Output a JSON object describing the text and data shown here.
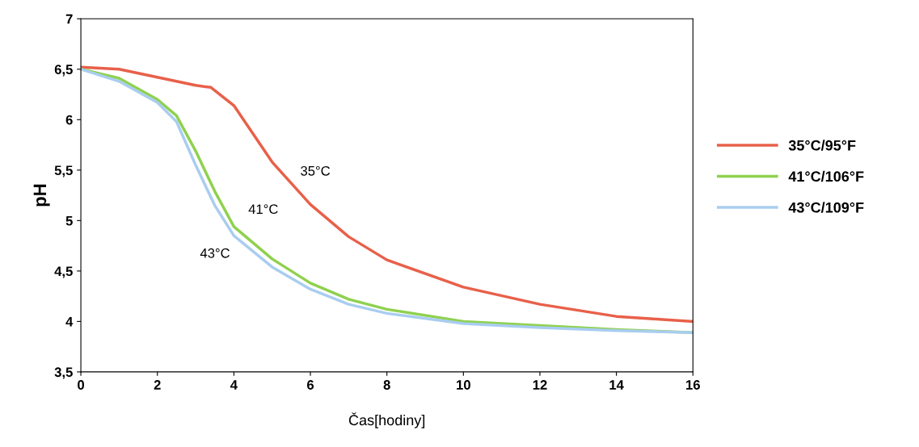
{
  "chart_data": {
    "type": "line",
    "xlabel": "Čas[hodiny]",
    "ylabel": "pH",
    "xlim": [
      0,
      16
    ],
    "xticks": [
      0,
      2,
      4,
      6,
      8,
      10,
      12,
      14,
      16
    ],
    "ylim": [
      3.5,
      7
    ],
    "yticks": [
      {
        "value": 3.5,
        "label": "3,5"
      },
      4,
      {
        "value": 4.5,
        "label": "4,5"
      },
      5,
      {
        "value": 5.5,
        "label": "5,5"
      },
      6,
      {
        "value": 6.5,
        "label": "6,5"
      },
      7
    ],
    "grid": false,
    "legend": "right",
    "marker": "none",
    "line_style": "solid",
    "series": [
      {
        "name": "35°C/95°F",
        "color": "#e8604a",
        "x": [
          0,
          1,
          2,
          3,
          3.4,
          4,
          5,
          6,
          7,
          8,
          10,
          12,
          14,
          16
        ],
        "values": [
          6.52,
          6.5,
          6.42,
          6.34,
          6.32,
          6.14,
          5.58,
          5.16,
          4.84,
          4.61,
          4.34,
          4.17,
          4.05,
          4.0
        ]
      },
      {
        "name": "41°C/106°F",
        "color": "#8fd14f",
        "x": [
          0,
          1,
          2,
          2.5,
          3,
          3.5,
          4,
          5,
          6,
          7,
          8,
          10,
          12,
          14,
          16
        ],
        "values": [
          6.5,
          6.41,
          6.2,
          6.04,
          5.69,
          5.29,
          4.94,
          4.62,
          4.38,
          4.22,
          4.12,
          4.0,
          3.96,
          3.92,
          3.89
        ]
      },
      {
        "name": "43°C/109°F",
        "color": "#a9cdf0",
        "x": [
          0,
          1,
          2,
          2.5,
          3,
          3.5,
          4,
          5,
          6,
          7,
          8,
          10,
          12,
          14,
          16
        ],
        "values": [
          6.5,
          6.38,
          6.17,
          5.98,
          5.55,
          5.15,
          4.85,
          4.54,
          4.32,
          4.17,
          4.08,
          3.98,
          3.94,
          3.91,
          3.89
        ]
      }
    ],
    "annotations": [
      {
        "text": "35°C",
        "x": 5.5,
        "y": 5.37
      },
      {
        "text": "41°C",
        "x": 4.2,
        "y": 4.88
      },
      {
        "text": "43°C",
        "x": 3.9,
        "y": 4.91
      }
    ]
  }
}
